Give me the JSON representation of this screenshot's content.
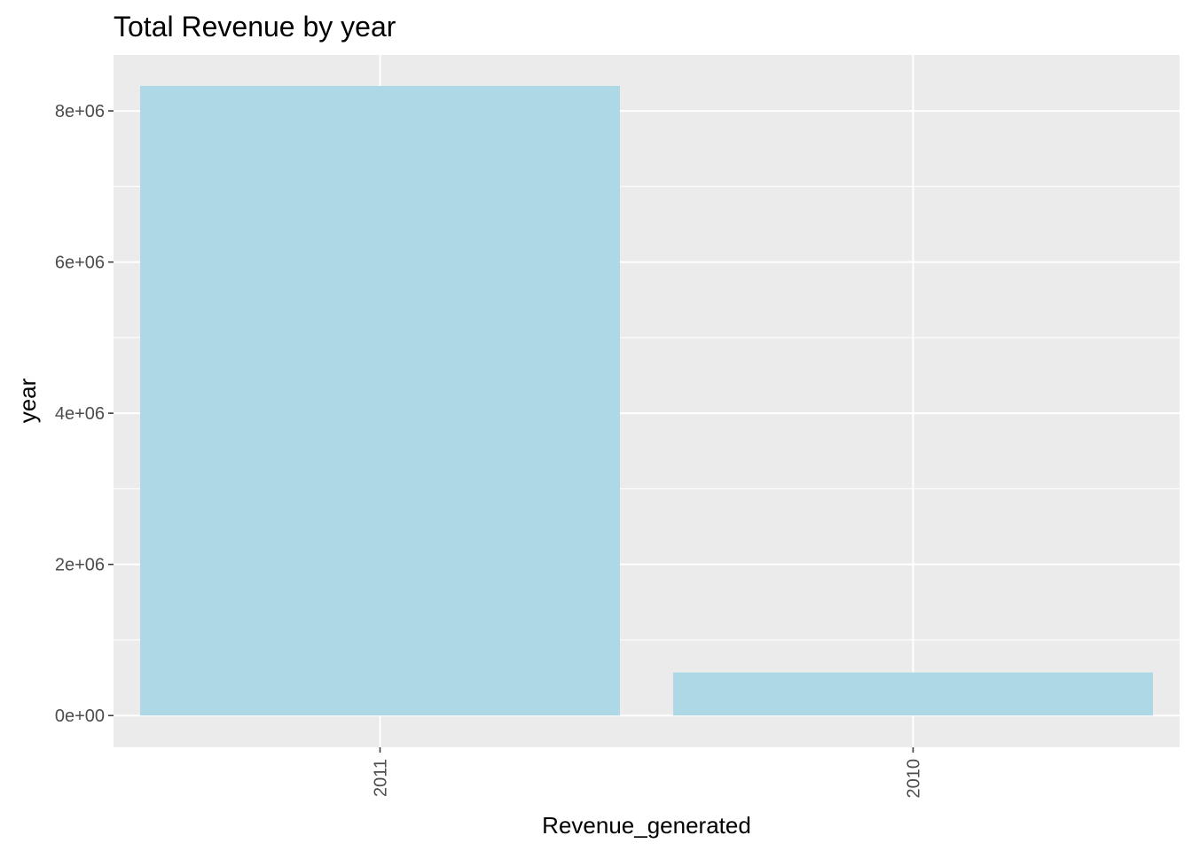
{
  "chart_data": {
    "type": "bar",
    "title": "Total Revenue by year",
    "xlabel": "Revenue_generated",
    "ylabel": "year",
    "categories": [
      "2011",
      "2010"
    ],
    "values": [
      8330000,
      570000
    ],
    "ylim": [
      -420000,
      8740000
    ],
    "yticks": [
      0,
      2000000,
      4000000,
      6000000,
      8000000
    ],
    "ytick_labels": [
      "0e+00",
      "2e+06",
      "4e+06",
      "6e+06",
      "8e+06"
    ],
    "grid": true,
    "legend": "none",
    "colors": {
      "bar": "#add8e6",
      "panel_background": "#ebebeb",
      "grid": "#ffffff",
      "tick_text": "#4d4d4d",
      "tick_mark": "#333333"
    }
  }
}
